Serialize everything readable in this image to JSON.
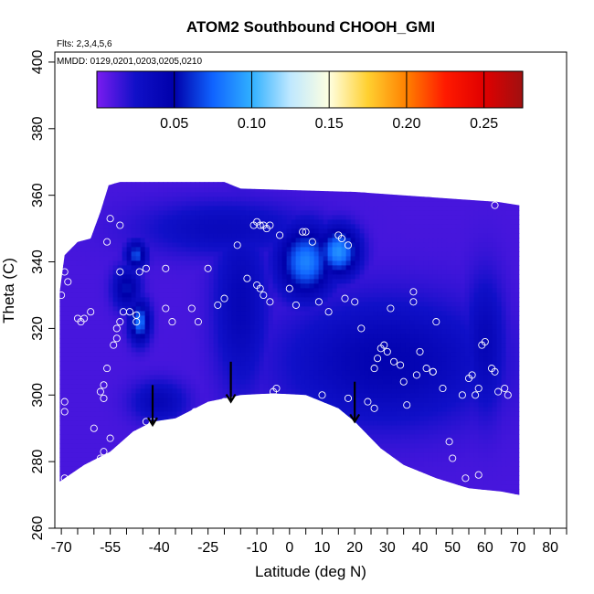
{
  "chart_data": {
    "type": "heatmap",
    "title": "ATOM2 Southbound CHOOH_GMI",
    "subtitle_flights": "Flts: 2,3,4,5,6",
    "subtitle_dates": "MMDD: 0129,0201,0203,0205,0210",
    "xlabel": "Latitude (deg N)",
    "ylabel": "Theta (C)",
    "xlim": [
      -72,
      85
    ],
    "ylim": [
      260,
      403
    ],
    "x_major_ticks": [
      -70,
      -55,
      -40,
      -25,
      -10,
      0,
      10,
      20,
      30,
      40,
      50,
      60,
      70,
      80
    ],
    "x_minor_ticks": [
      -65,
      -60,
      -50,
      -45,
      -35,
      -30,
      -20,
      -15,
      -5,
      5,
      15,
      25,
      35,
      45,
      55,
      65,
      75,
      85
    ],
    "y_ticks": [
      260,
      280,
      300,
      320,
      340,
      360,
      380,
      400
    ],
    "colorbar": {
      "min": 0.0,
      "max": 0.275,
      "ticks": [
        0.05,
        0.1,
        0.15,
        0.2,
        0.25
      ],
      "tick_labels": [
        "0.05",
        "0.10",
        "0.15",
        "0.20",
        "0.25"
      ],
      "colors": [
        "#7a1cf0",
        "#1010c8",
        "#0000aa",
        "#1064ff",
        "#30b0ff",
        "#bfe8ff",
        "#ffffe0",
        "#ffd030",
        "#ff8000",
        "#ff1a00",
        "#e00000",
        "#a01010"
      ]
    },
    "domain_upper": [
      [
        -70.5,
        331
      ],
      [
        -69,
        342
      ],
      [
        -65,
        346
      ],
      [
        -61,
        347
      ],
      [
        -58,
        355
      ],
      [
        -55.5,
        363
      ],
      [
        -52,
        364
      ],
      [
        -20,
        364
      ],
      [
        -15,
        362
      ],
      [
        20,
        361
      ],
      [
        64,
        358
      ],
      [
        70.5,
        357
      ]
    ],
    "domain_lower": [
      [
        -70.5,
        274
      ],
      [
        -63,
        279
      ],
      [
        -55,
        283
      ],
      [
        -48,
        289
      ],
      [
        -42,
        292
      ],
      [
        -35,
        293
      ],
      [
        -25,
        298
      ],
      [
        -15,
        300
      ],
      [
        -5,
        300.5
      ],
      [
        5,
        300
      ],
      [
        15,
        296
      ],
      [
        20,
        292
      ],
      [
        28,
        284
      ],
      [
        35,
        279
      ],
      [
        45,
        275
      ],
      [
        55,
        272
      ],
      [
        65,
        271
      ],
      [
        70.5,
        270
      ]
    ],
    "field_blobs": [
      {
        "lat": 5,
        "theta": 340,
        "value": 0.085,
        "spread_lat": 8,
        "spread_theta": 10
      },
      {
        "lat": 15,
        "theta": 343,
        "value": 0.09,
        "spread_lat": 6,
        "spread_theta": 7
      },
      {
        "lat": -46,
        "theta": 322,
        "value": 0.08,
        "spread_lat": 3,
        "spread_theta": 6
      },
      {
        "lat": -47,
        "theta": 342,
        "value": 0.07,
        "spread_lat": 3,
        "spread_theta": 4
      },
      {
        "lat": -50,
        "theta": 332,
        "value": 0.055,
        "spread_lat": 4,
        "spread_theta": 6
      },
      {
        "lat": -15,
        "theta": 327,
        "value": 0.04,
        "spread_lat": 8,
        "spread_theta": 25
      },
      {
        "lat": 30,
        "theta": 310,
        "value": 0.045,
        "spread_lat": 30,
        "spread_theta": 18
      },
      {
        "lat": 60,
        "theta": 315,
        "value": 0.04,
        "spread_lat": 6,
        "spread_theta": 20
      },
      {
        "lat": -40,
        "theta": 298,
        "value": 0.04,
        "spread_lat": 8,
        "spread_theta": 6
      },
      {
        "lat": -20,
        "theta": 350,
        "value": 0.035,
        "spread_lat": 25,
        "spread_theta": 8
      }
    ],
    "observations": [
      [
        -70,
        330
      ],
      [
        -69,
        337
      ],
      [
        -68,
        334
      ],
      [
        -69,
        298
      ],
      [
        -69,
        295
      ],
      [
        -69,
        275
      ],
      [
        -65,
        323
      ],
      [
        -64,
        322
      ],
      [
        -63,
        323
      ],
      [
        -61,
        325
      ],
      [
        -60,
        290
      ],
      [
        -58,
        281
      ],
      [
        -57,
        283
      ],
      [
        -55,
        287
      ],
      [
        -58,
        301
      ],
      [
        -57,
        299
      ],
      [
        -57,
        303
      ],
      [
        -56,
        308
      ],
      [
        -56,
        346
      ],
      [
        -55,
        353
      ],
      [
        -52,
        351
      ],
      [
        -52,
        337
      ],
      [
        -54,
        315
      ],
      [
        -53,
        317
      ],
      [
        -53,
        320
      ],
      [
        -52,
        322
      ],
      [
        -51,
        325
      ],
      [
        -49,
        325
      ],
      [
        -47,
        324
      ],
      [
        -47,
        322
      ],
      [
        -46,
        337
      ],
      [
        -44,
        338
      ],
      [
        -44,
        292
      ],
      [
        -42,
        292
      ],
      [
        -38,
        338
      ],
      [
        -38,
        326
      ],
      [
        -36,
        322
      ],
      [
        -34,
        290
      ],
      [
        -32,
        292
      ],
      [
        -30,
        326
      ],
      [
        -29,
        295
      ],
      [
        -28,
        322
      ],
      [
        -25,
        338
      ],
      [
        -22,
        327
      ],
      [
        -20,
        298
      ],
      [
        -20,
        329
      ],
      [
        -16,
        345
      ],
      [
        -13,
        335
      ],
      [
        -11,
        351
      ],
      [
        -10,
        352
      ],
      [
        -9,
        351
      ],
      [
        -8,
        351
      ],
      [
        -7,
        350
      ],
      [
        -6,
        351
      ],
      [
        -10,
        333
      ],
      [
        -9,
        332
      ],
      [
        -8,
        330
      ],
      [
        -6,
        328
      ],
      [
        -3,
        348
      ],
      [
        -5,
        301
      ],
      [
        -4,
        302
      ],
      [
        0,
        332
      ],
      [
        2,
        327
      ],
      [
        4,
        349
      ],
      [
        5,
        349
      ],
      [
        7,
        346
      ],
      [
        10,
        300
      ],
      [
        9,
        328
      ],
      [
        12,
        325
      ],
      [
        15,
        348
      ],
      [
        16,
        347
      ],
      [
        17,
        329
      ],
      [
        18,
        345
      ],
      [
        20,
        328
      ],
      [
        22,
        320
      ],
      [
        18,
        299
      ],
      [
        24,
        298
      ],
      [
        26,
        296
      ],
      [
        26,
        308
      ],
      [
        27,
        311
      ],
      [
        28,
        314
      ],
      [
        29,
        315
      ],
      [
        30,
        313
      ],
      [
        31,
        326
      ],
      [
        32,
        310
      ],
      [
        34,
        309
      ],
      [
        35,
        304
      ],
      [
        36,
        297
      ],
      [
        38,
        331
      ],
      [
        38,
        328
      ],
      [
        39,
        306
      ],
      [
        40,
        313
      ],
      [
        42,
        308
      ],
      [
        44,
        307
      ],
      [
        44,
        307
      ],
      [
        45,
        322
      ],
      [
        47,
        302
      ],
      [
        49,
        286
      ],
      [
        50,
        281
      ],
      [
        53,
        300
      ],
      [
        55,
        305
      ],
      [
        56,
        306
      ],
      [
        57,
        300
      ],
      [
        58,
        302
      ],
      [
        59,
        315
      ],
      [
        60,
        316
      ],
      [
        62,
        308
      ],
      [
        63,
        307
      ],
      [
        64,
        301
      ],
      [
        66,
        302
      ],
      [
        54,
        275
      ],
      [
        58,
        276
      ],
      [
        63,
        357
      ],
      [
        67,
        300
      ]
    ],
    "arrows": [
      {
        "lat": -42,
        "theta": 297,
        "length": 6
      },
      {
        "lat": -18,
        "theta": 304,
        "length": 6
      },
      {
        "lat": 20,
        "theta": 298,
        "length": 6
      }
    ]
  }
}
